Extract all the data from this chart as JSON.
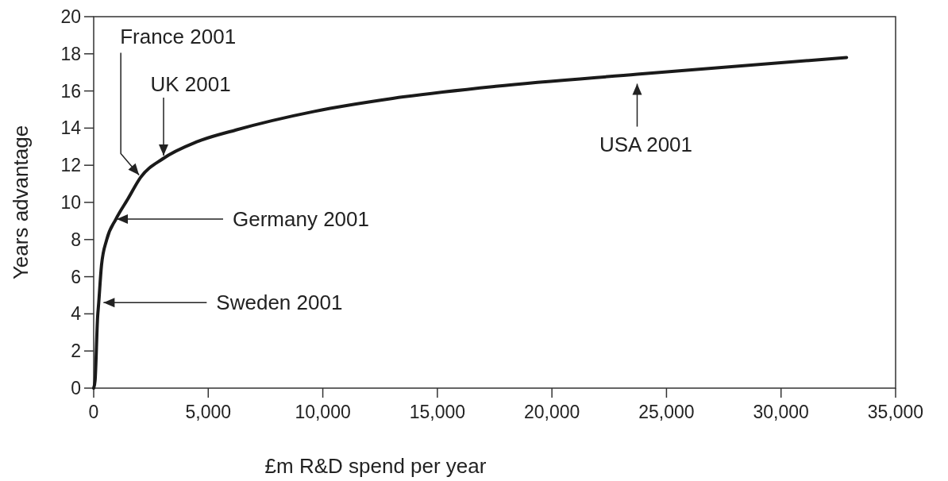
{
  "chart_data": {
    "type": "line",
    "xlabel": "£m R&D spend per year",
    "ylabel": "Years advantage",
    "xlim": [
      0,
      35000
    ],
    "ylim": [
      0,
      20
    ],
    "xticks": [
      {
        "value": 0,
        "label": "0"
      },
      {
        "value": 5000,
        "label": "5,000"
      },
      {
        "value": 10000,
        "label": "10,000"
      },
      {
        "value": 15000,
        "label": "15,000"
      },
      {
        "value": 20000,
        "label": "20,000"
      },
      {
        "value": 25000,
        "label": "25,000"
      },
      {
        "value": 30000,
        "label": "30,000"
      },
      {
        "value": 35000,
        "label": "35,000"
      }
    ],
    "yticks": [
      0,
      2,
      4,
      6,
      8,
      10,
      12,
      14,
      16,
      18,
      20
    ],
    "grid": false,
    "marker": "none",
    "line_style": "solid",
    "series": [
      {
        "color": "#1a1a1a",
        "x": [
          0,
          60,
          170,
          220,
          340,
          570,
          970,
          1500,
          2050,
          3020,
          4500,
          6210,
          9630,
          13050,
          17540,
          23720,
          32860
        ],
        "values": [
          0,
          0.4,
          3.8,
          4.6,
          6.6,
          8.0,
          9.1,
          10.2,
          11.35,
          12.35,
          13.26,
          13.9,
          14.9,
          15.6,
          16.25,
          16.9,
          17.8
        ]
      }
    ],
    "annotations": [
      {
        "text": "Sweden 2001",
        "x": 220,
        "y": 4.6
      },
      {
        "text": "Germany 2001",
        "x": 970,
        "y": 9.1
      },
      {
        "text": "France 2001",
        "x": 2050,
        "y": 11.35
      },
      {
        "text": "UK 2001",
        "x": 3050,
        "y": 12.35
      },
      {
        "text": "USA 2001",
        "x": 23720,
        "y": 16.9
      }
    ]
  }
}
